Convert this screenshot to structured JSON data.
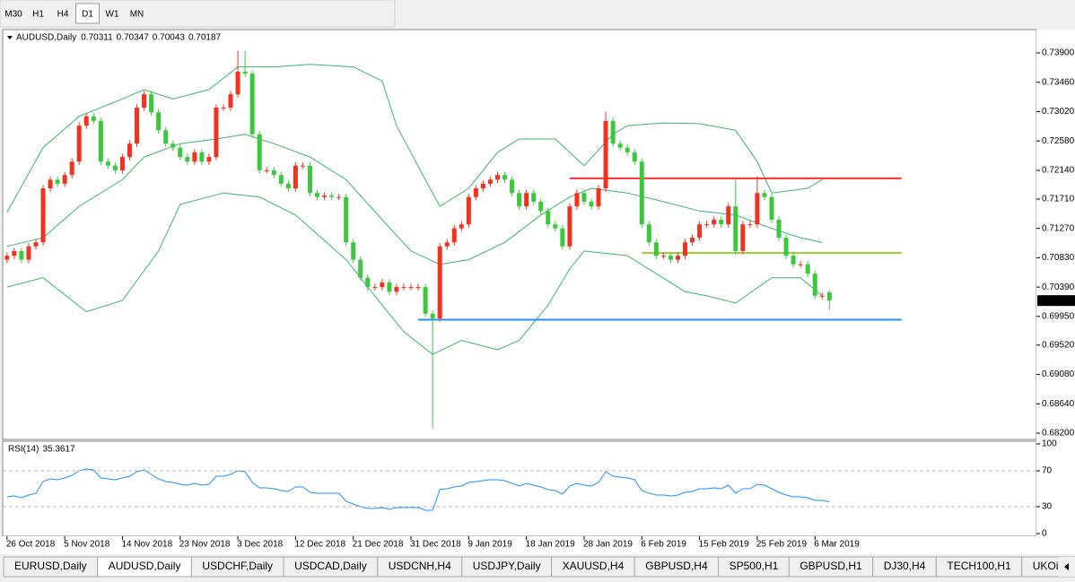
{
  "toolbar": {
    "timeframes": [
      "M30",
      "H1",
      "H4",
      "D1",
      "W1",
      "MN"
    ],
    "active": 3
  },
  "chart_data": [
    {
      "type": "candlestick",
      "title": "AUDUSD,Daily",
      "up_color": "#f0321e",
      "down_color": "#3cc83c",
      "xlim": [
        -0.6,
        142.7
      ],
      "ylim": [
        0.68106,
        0.74223
      ],
      "yticks": [
        {
          "value": 0.739,
          "label": "0.73900"
        },
        {
          "value": 0.7346,
          "label": "0.73460"
        },
        {
          "value": 0.7302,
          "label": "0.73020"
        },
        {
          "value": 0.7258,
          "label": "0.72580"
        },
        {
          "value": 0.7214,
          "label": "0.72140"
        },
        {
          "value": 0.7171,
          "label": "0.71710"
        },
        {
          "value": 0.7127,
          "label": "0.71270"
        },
        {
          "value": 0.7083,
          "label": "0.70830"
        },
        {
          "value": 0.7039,
          "label": "0.70390"
        },
        {
          "value": 0.6995,
          "label": "0.69950"
        },
        {
          "value": 0.6952,
          "label": "0.69520"
        },
        {
          "value": 0.6908,
          "label": "0.69080"
        },
        {
          "value": 0.6864,
          "label": "0.68640"
        },
        {
          "value": 0.682,
          "label": "0.68200"
        }
      ],
      "xticks": [
        {
          "value": 0,
          "label": "26 Oct 2018"
        },
        {
          "value": 8,
          "label": "5 Nov 2018"
        },
        {
          "value": 16,
          "label": "14 Nov 2018"
        },
        {
          "value": 24,
          "label": "23 Nov 2018"
        },
        {
          "value": 32,
          "label": "3 Dec 2018"
        },
        {
          "value": 40,
          "label": "12 Dec 2018"
        },
        {
          "value": 48,
          "label": "21 Dec 2018"
        },
        {
          "value": 56,
          "label": "31 Dec 2018"
        },
        {
          "value": 64,
          "label": "9 Jan 2019"
        },
        {
          "value": 72,
          "label": "18 Jan 2019"
        },
        {
          "value": 80,
          "label": "28 Jan 2019"
        },
        {
          "value": 88,
          "label": "6 Feb 2019"
        },
        {
          "value": 96,
          "label": "15 Feb 2019"
        },
        {
          "value": 104,
          "label": "25 Feb 2019"
        },
        {
          "value": 112,
          "label": "6 Mar 2019"
        }
      ],
      "open": [
        0.708,
        0.7086,
        0.7093,
        0.708,
        0.71,
        0.7106,
        0.7187,
        0.72,
        0.7194,
        0.7207,
        0.7227,
        0.7281,
        0.7295,
        0.7288,
        0.7227,
        0.7221,
        0.7214,
        0.7234,
        0.7254,
        0.7308,
        0.7328,
        0.7301,
        0.7274,
        0.7254,
        0.7248,
        0.7234,
        0.7227,
        0.7241,
        0.7227,
        0.7234,
        0.7308,
        0.7308,
        0.7328,
        0.7362,
        0.7359,
        0.7268,
        0.7214,
        0.7214,
        0.7207,
        0.7194,
        0.7187,
        0.7221,
        0.7221,
        0.718,
        0.7174,
        0.7176,
        0.7174,
        0.7174,
        0.7106,
        0.708,
        0.7053,
        0.7039,
        0.7039,
        0.7046,
        0.7032,
        0.7039,
        0.7039,
        0.7039,
        0.7039,
        0.6999,
        0.6992,
        0.71,
        0.7106,
        0.7127,
        0.7133,
        0.7174,
        0.7187,
        0.7194,
        0.72,
        0.7207,
        0.72,
        0.718,
        0.716,
        0.718,
        0.7167,
        0.7153,
        0.7133,
        0.7127,
        0.71,
        0.716,
        0.718,
        0.7167,
        0.716,
        0.7187,
        0.7288,
        0.7254,
        0.7248,
        0.7241,
        0.7227,
        0.7133,
        0.7106,
        0.7086,
        0.7086,
        0.708,
        0.7086,
        0.7106,
        0.7113,
        0.7133,
        0.7133,
        0.714,
        0.7133,
        0.716,
        0.7093,
        0.7133,
        0.7133,
        0.718,
        0.7174,
        0.714,
        0.7113,
        0.7086,
        0.7073,
        0.7073,
        0.7059,
        0.7026,
        0.70311
      ],
      "high": [
        0.7091,
        0.7098,
        0.7098,
        0.7105,
        0.7111,
        0.7192,
        0.7205,
        0.7205,
        0.7212,
        0.7232,
        0.7286,
        0.73,
        0.73,
        0.7293,
        0.7232,
        0.7226,
        0.7239,
        0.7259,
        0.7313,
        0.7333,
        0.7333,
        0.7306,
        0.7279,
        0.7259,
        0.7253,
        0.7239,
        0.7246,
        0.7246,
        0.7239,
        0.7313,
        0.7313,
        0.7333,
        0.7393,
        0.7393,
        0.7364,
        0.7273,
        0.7219,
        0.7219,
        0.7212,
        0.7199,
        0.7226,
        0.7226,
        0.7226,
        0.7185,
        0.7181,
        0.7181,
        0.7179,
        0.7179,
        0.7111,
        0.7085,
        0.7058,
        0.7044,
        0.7051,
        0.7051,
        0.7044,
        0.7044,
        0.7044,
        0.7044,
        0.7044,
        0.7004,
        0.7105,
        0.7111,
        0.7132,
        0.7138,
        0.7179,
        0.7192,
        0.7199,
        0.7205,
        0.7212,
        0.7212,
        0.7205,
        0.7185,
        0.7185,
        0.7185,
        0.7172,
        0.7158,
        0.7138,
        0.7132,
        0.7165,
        0.7185,
        0.7185,
        0.7172,
        0.7192,
        0.7302,
        0.7293,
        0.7259,
        0.7253,
        0.7246,
        0.7232,
        0.7138,
        0.7111,
        0.7091,
        0.7091,
        0.7091,
        0.7111,
        0.7118,
        0.7138,
        0.7138,
        0.7145,
        0.7145,
        0.7165,
        0.72,
        0.7138,
        0.7138,
        0.7205,
        0.7185,
        0.7179,
        0.7145,
        0.7118,
        0.7091,
        0.7078,
        0.7078,
        0.7064,
        0.7031,
        0.70347
      ],
      "low": [
        0.7075,
        0.7081,
        0.7075,
        0.7075,
        0.7095,
        0.7101,
        0.7182,
        0.7189,
        0.7189,
        0.7202,
        0.7222,
        0.7276,
        0.7283,
        0.7222,
        0.7216,
        0.7209,
        0.7209,
        0.7229,
        0.7249,
        0.7303,
        0.7296,
        0.7269,
        0.7249,
        0.7243,
        0.7229,
        0.7222,
        0.7222,
        0.7222,
        0.7222,
        0.7229,
        0.7303,
        0.7303,
        0.7323,
        0.7354,
        0.7263,
        0.7209,
        0.7209,
        0.7202,
        0.7189,
        0.7182,
        0.7182,
        0.7216,
        0.7175,
        0.7169,
        0.7169,
        0.7169,
        0.7169,
        0.7101,
        0.7075,
        0.7048,
        0.7034,
        0.7034,
        0.7034,
        0.7027,
        0.7027,
        0.7034,
        0.7034,
        0.7034,
        0.6994,
        0.6827,
        0.6987,
        0.7095,
        0.7101,
        0.7122,
        0.7128,
        0.7169,
        0.7182,
        0.7189,
        0.7195,
        0.7195,
        0.7175,
        0.7155,
        0.7155,
        0.7162,
        0.7148,
        0.7128,
        0.7122,
        0.7095,
        0.7095,
        0.7155,
        0.7162,
        0.7155,
        0.7155,
        0.7182,
        0.7249,
        0.7243,
        0.7236,
        0.7222,
        0.7128,
        0.7101,
        0.7081,
        0.7081,
        0.7075,
        0.7075,
        0.7081,
        0.7101,
        0.7108,
        0.7128,
        0.7128,
        0.7128,
        0.7128,
        0.7088,
        0.7088,
        0.7128,
        0.7128,
        0.7169,
        0.7135,
        0.7108,
        0.7081,
        0.7068,
        0.7068,
        0.7054,
        0.7021,
        0.7021,
        0.70043
      ],
      "close": [
        0.7086,
        0.7093,
        0.708,
        0.71,
        0.7106,
        0.7187,
        0.72,
        0.7194,
        0.7207,
        0.7227,
        0.7281,
        0.7295,
        0.7288,
        0.7227,
        0.7221,
        0.7214,
        0.7234,
        0.7254,
        0.7308,
        0.7328,
        0.7301,
        0.7274,
        0.7254,
        0.7248,
        0.7234,
        0.7227,
        0.7241,
        0.7227,
        0.7234,
        0.7308,
        0.7308,
        0.7328,
        0.7362,
        0.7359,
        0.7268,
        0.7214,
        0.7214,
        0.7207,
        0.7194,
        0.7187,
        0.7221,
        0.7221,
        0.718,
        0.7174,
        0.7176,
        0.7174,
        0.7174,
        0.7106,
        0.708,
        0.7053,
        0.7039,
        0.7039,
        0.7046,
        0.7032,
        0.7039,
        0.7039,
        0.7039,
        0.7039,
        0.6999,
        0.6992,
        0.71,
        0.7106,
        0.7127,
        0.7133,
        0.7174,
        0.7187,
        0.7194,
        0.72,
        0.7207,
        0.72,
        0.718,
        0.716,
        0.718,
        0.7167,
        0.7153,
        0.7133,
        0.7127,
        0.71,
        0.716,
        0.718,
        0.7167,
        0.716,
        0.7187,
        0.7288,
        0.7254,
        0.7248,
        0.7241,
        0.7227,
        0.7133,
        0.7106,
        0.7086,
        0.7086,
        0.708,
        0.7086,
        0.7106,
        0.7113,
        0.7133,
        0.7133,
        0.714,
        0.7133,
        0.716,
        0.7093,
        0.7133,
        0.7133,
        0.718,
        0.7174,
        0.714,
        0.7113,
        0.7086,
        0.7073,
        0.7073,
        0.7059,
        0.7026,
        0.7026,
        0.70187
      ],
      "bands_color": "#3cb371",
      "bands": [
        {
          "x": [
            0,
            5,
            10,
            16,
            19,
            23,
            28,
            32,
            37,
            42,
            48,
            52,
            54,
            58,
            60,
            64,
            68,
            71,
            76,
            80,
            84,
            86,
            91,
            96,
            101,
            104,
            106,
            111,
            113
          ],
          "values": [
            0.7151,
            0.7248,
            0.7295,
            0.7321,
            0.7335,
            0.7321,
            0.7335,
            0.7369,
            0.7369,
            0.7373,
            0.7369,
            0.7348,
            0.7281,
            0.72,
            0.716,
            0.7187,
            0.7241,
            0.7261,
            0.7261,
            0.7221,
            0.7268,
            0.7281,
            0.7285,
            0.7284,
            0.7274,
            0.7227,
            0.718,
            0.7187,
            0.72
          ]
        },
        {
          "x": [
            0,
            5,
            10,
            16,
            19,
            24,
            29,
            33,
            37,
            42,
            47,
            52,
            56,
            60,
            64,
            69,
            74,
            78,
            81,
            86,
            91,
            96,
            101,
            106,
            110,
            113
          ],
          "values": [
            0.71,
            0.7113,
            0.716,
            0.72,
            0.7234,
            0.7254,
            0.7261,
            0.7268,
            0.7254,
            0.7234,
            0.72,
            0.714,
            0.7093,
            0.7073,
            0.708,
            0.7106,
            0.7147,
            0.7174,
            0.7187,
            0.718,
            0.7167,
            0.7153,
            0.7147,
            0.7127,
            0.7113,
            0.7106
          ]
        },
        {
          "x": [
            0,
            5,
            11,
            16,
            21,
            24,
            30,
            35,
            40,
            47,
            52,
            55,
            59,
            63,
            68,
            71,
            75,
            78,
            80,
            86,
            90,
            94,
            97,
            101,
            106,
            110,
            113
          ],
          "values": [
            0.7039,
            0.7053,
            0.7002,
            0.7019,
            0.7093,
            0.7163,
            0.718,
            0.7174,
            0.7147,
            0.708,
            0.7012,
            0.6972,
            0.6938,
            0.6959,
            0.6945,
            0.6959,
            0.7012,
            0.7066,
            0.7093,
            0.7086,
            0.7059,
            0.7032,
            0.7026,
            0.7015,
            0.7053,
            0.7053,
            0.7026
          ]
        }
      ],
      "levels": [
        {
          "value": 0.7202,
          "from": 78,
          "to": 124,
          "color": "#ff3030"
        },
        {
          "value": 0.709,
          "from": 88,
          "to": 124,
          "color": "#9acd32"
        },
        {
          "value": 0.699,
          "from": 57,
          "to": 124,
          "color": "#1e90ff"
        }
      ]
    },
    {
      "type": "line",
      "title": "RSI(14)",
      "color": "#1e90ff",
      "ylim": [
        -3,
        102
      ],
      "yticks": [
        100,
        70,
        30,
        0
      ],
      "values": [
        41,
        42,
        40,
        43,
        45,
        58,
        61,
        60,
        62,
        65,
        70,
        72,
        71,
        62,
        61,
        60,
        62,
        64,
        69,
        71,
        66,
        61,
        58,
        57,
        55,
        54,
        56,
        54,
        55,
        64,
        64,
        66,
        70,
        69,
        57,
        51,
        51,
        50,
        48,
        47,
        52,
        52,
        46,
        45,
        45,
        45,
        45,
        36,
        33,
        30,
        28,
        28,
        29,
        27,
        29,
        29,
        29,
        29,
        26,
        26,
        49,
        50,
        52,
        53,
        57,
        58,
        59,
        60,
        60,
        59,
        56,
        53,
        56,
        54,
        52,
        49,
        48,
        44,
        53,
        56,
        54,
        53,
        57,
        69,
        64,
        63,
        62,
        60,
        48,
        45,
        43,
        43,
        42,
        43,
        46,
        47,
        50,
        50,
        51,
        50,
        54,
        45,
        50,
        50,
        55,
        54,
        50,
        46,
        43,
        41,
        41,
        40,
        37,
        37,
        35.3617
      ]
    }
  ],
  "tabs": {
    "items": [
      "EURUSD,Daily",
      "AUDUSD,Daily",
      "USDCHF,Daily",
      "USDCAD,Daily",
      "USDCNH,H4",
      "USDJPY,Daily",
      "XAUUSD,H4",
      "GBPUSD,H4",
      "SP500,H1",
      "GBPUSD,H1",
      "DJ30,H4",
      "TECH100,H1",
      "UKOil,"
    ],
    "active": 1
  }
}
